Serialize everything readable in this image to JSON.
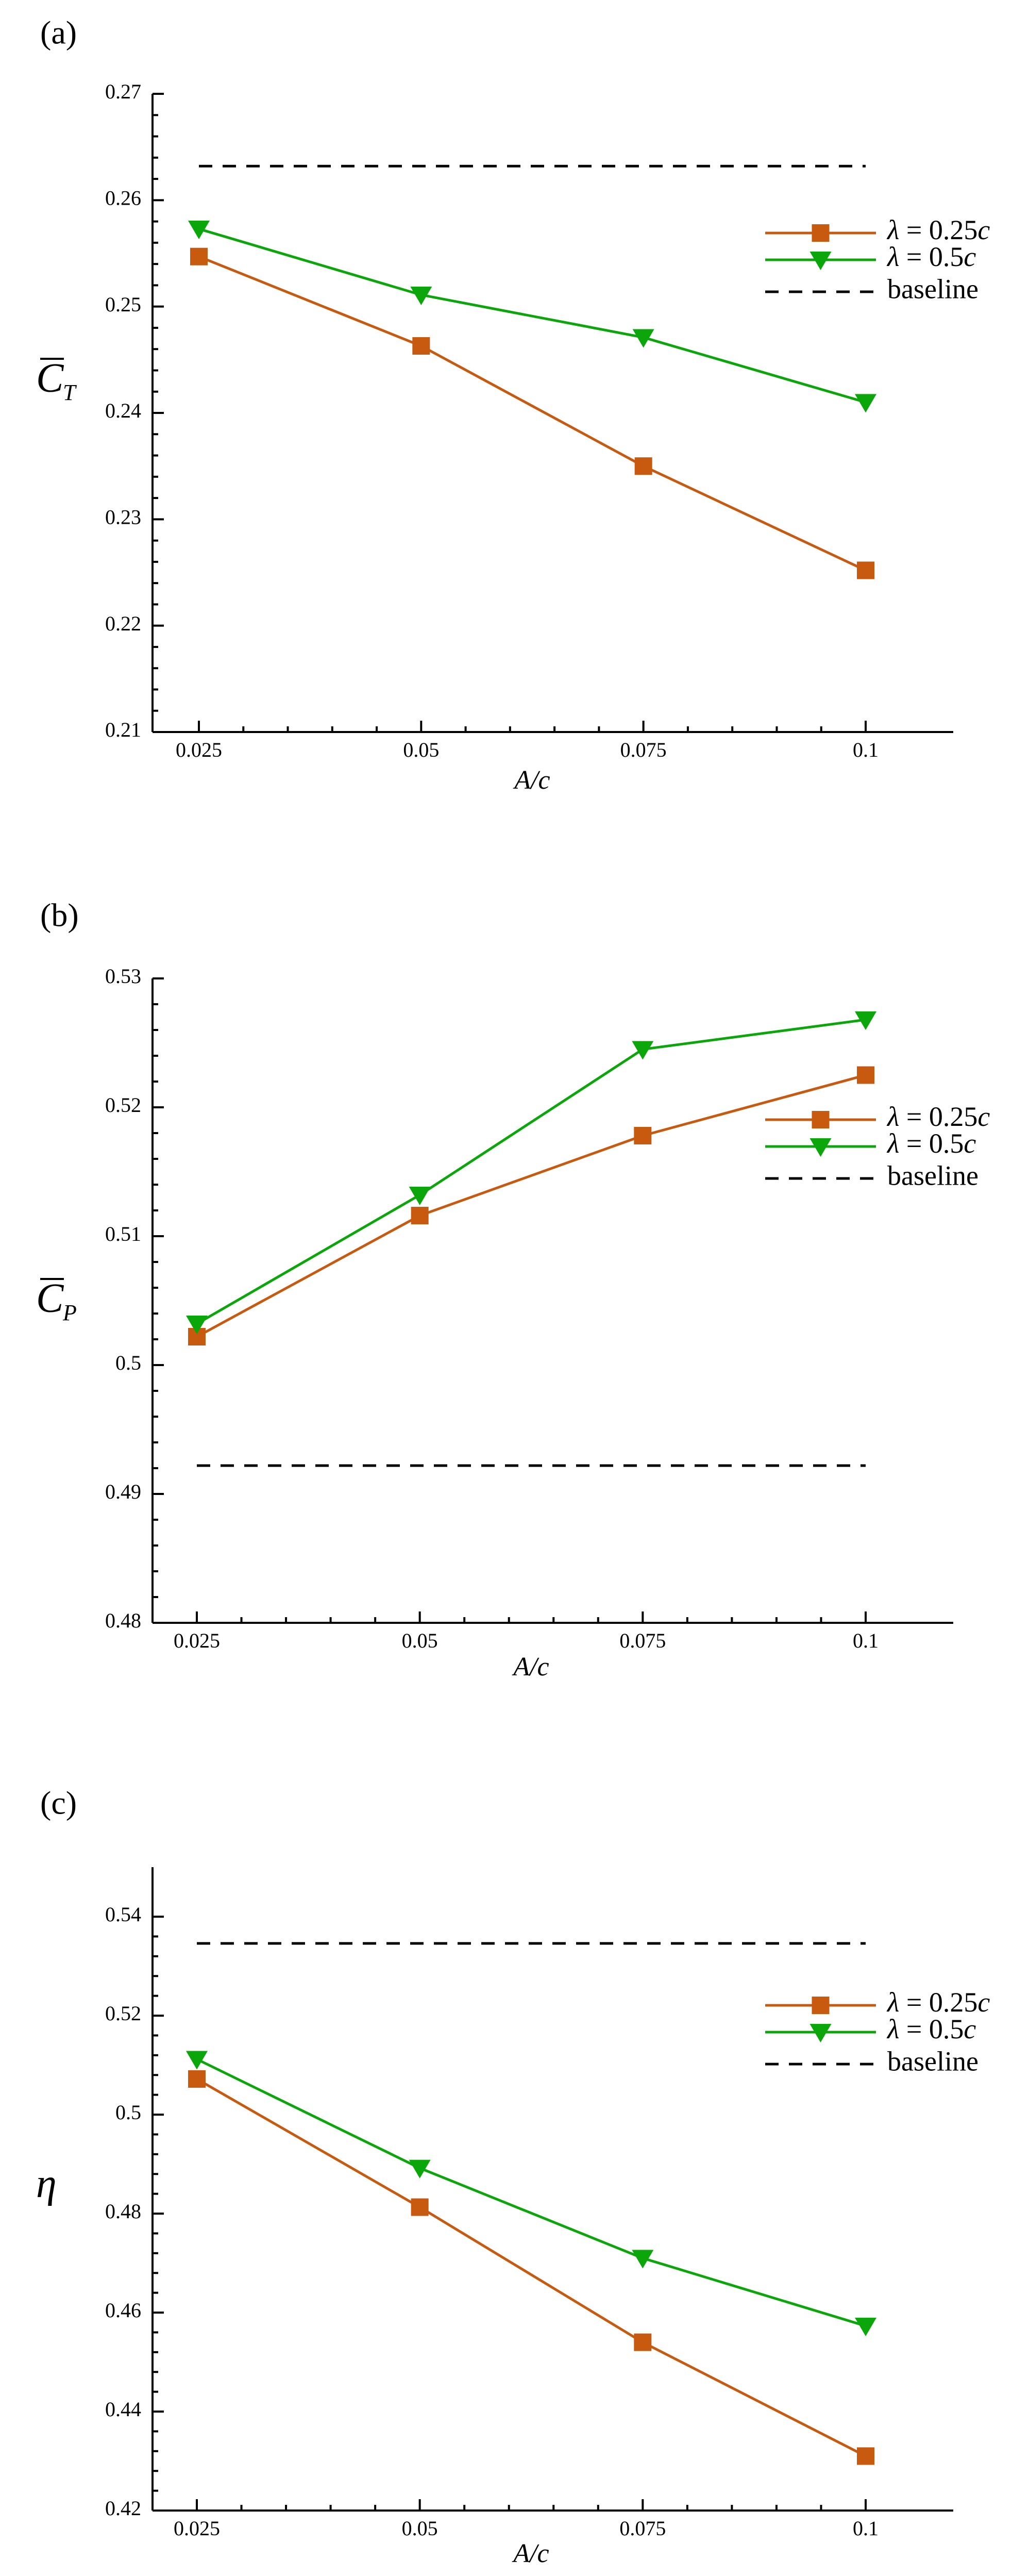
{
  "colors": {
    "series1": "#c85a10",
    "series2": "#0aa60a",
    "baseline": "#000000"
  },
  "legend_labels": {
    "s1_pre": "λ = 0.25",
    "s1_post": "c",
    "s2_pre": "λ = 0.5",
    "s2_post": "c",
    "baseline": "baseline"
  },
  "chart_data": [
    {
      "panel_label": "(a)",
      "type": "line",
      "ylabel": "C",
      "ylabel_sub": "T",
      "ylabel_overbar": true,
      "xlabel": "A/c",
      "x": [
        0.025,
        0.05,
        0.075,
        0.1
      ],
      "x_tick_labels": [
        "0.025",
        "0.05",
        "0.075",
        "0.1"
      ],
      "ylim": [
        0.21,
        0.27
      ],
      "y_ticks": [
        0.21,
        0.22,
        0.23,
        0.24,
        0.25,
        0.26,
        0.27
      ],
      "y_tick_labels": [
        "0.21",
        "0.22",
        "0.23",
        "0.24",
        "0.25",
        "0.26",
        "0.27"
      ],
      "series": [
        {
          "name": "λ = 0.25c",
          "marker": "square",
          "values": [
            0.2547,
            0.2463,
            0.235,
            0.2252
          ]
        },
        {
          "name": "λ = 0.5c",
          "marker": "triangle-down",
          "values": [
            0.2573,
            0.2511,
            0.2471,
            0.241
          ]
        }
      ],
      "baseline": {
        "name": "baseline",
        "value": 0.2632
      },
      "legend_position": "right"
    },
    {
      "panel_label": "(b)",
      "type": "line",
      "ylabel": "C",
      "ylabel_sub": "P",
      "ylabel_overbar": true,
      "xlabel": "A/c",
      "x": [
        0.025,
        0.05,
        0.075,
        0.1
      ],
      "x_tick_labels": [
        "0.025",
        "0.05",
        "0.075",
        "0.1"
      ],
      "ylim": [
        0.48,
        0.53
      ],
      "y_ticks": [
        0.48,
        0.49,
        0.5,
        0.51,
        0.52,
        0.53
      ],
      "y_tick_labels": [
        "0.48",
        "0.49",
        "0.5",
        "0.51",
        "0.52",
        "0.53"
      ],
      "series": [
        {
          "name": "λ = 0.25c",
          "marker": "square",
          "values": [
            0.5022,
            0.5116,
            0.5178,
            0.5225
          ]
        },
        {
          "name": "λ = 0.5c",
          "marker": "triangle-down",
          "values": [
            0.5032,
            0.5132,
            0.5245,
            0.5268
          ]
        }
      ],
      "baseline": {
        "name": "baseline",
        "value": 0.4922
      },
      "legend_position": "right"
    },
    {
      "panel_label": "(c)",
      "type": "line",
      "ylabel": "η",
      "ylabel_sub": "",
      "ylabel_overbar": false,
      "xlabel": "A/c",
      "x": [
        0.025,
        0.05,
        0.075,
        0.1
      ],
      "x_tick_labels": [
        "0.025",
        "0.05",
        "0.075",
        "0.1"
      ],
      "ylim": [
        0.42,
        0.55
      ],
      "y_ticks": [
        0.42,
        0.44,
        0.46,
        0.48,
        0.5,
        0.52,
        0.54
      ],
      "y_tick_labels": [
        "0.42",
        "0.44",
        "0.46",
        "0.48",
        "0.5",
        "0.52",
        "0.54"
      ],
      "series": [
        {
          "name": "λ = 0.25c",
          "marker": "square",
          "values": [
            0.5072,
            0.4813,
            0.454,
            0.431
          ]
        },
        {
          "name": "λ = 0.5c",
          "marker": "triangle-down",
          "values": [
            0.5112,
            0.4892,
            0.471,
            0.4573
          ]
        }
      ],
      "baseline": {
        "name": "baseline",
        "value": 0.5346
      },
      "legend_position": "right"
    }
  ]
}
